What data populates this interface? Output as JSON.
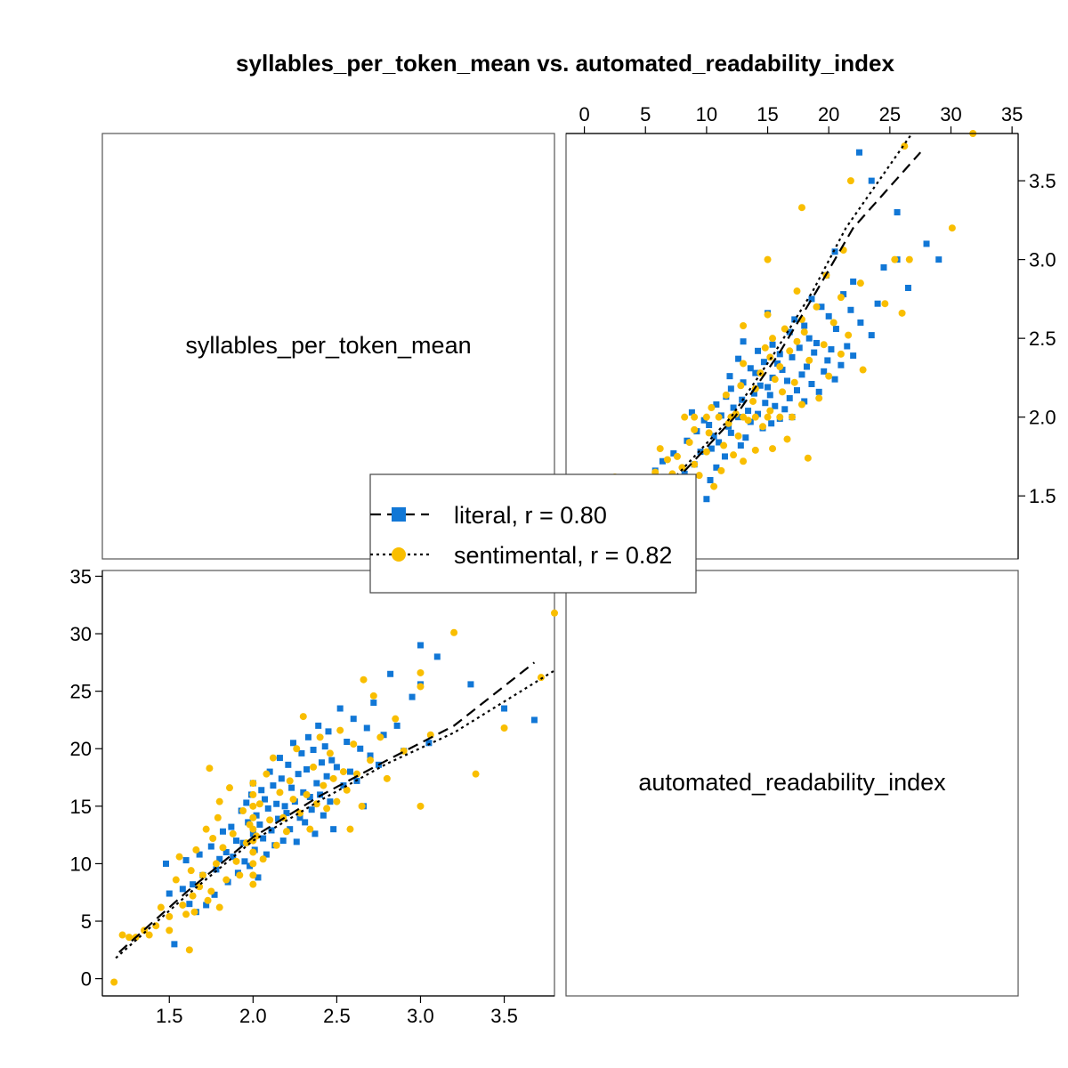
{
  "chart_data": {
    "type": "scatter",
    "layout": "scatterplot-matrix",
    "title": "syllables_per_token_mean vs. automated_readability_index",
    "variables": [
      "syllables_per_token_mean",
      "automated_readability_index"
    ],
    "axes": {
      "syllables_per_token_mean": {
        "range": [
          1.1,
          3.8
        ],
        "ticks": [
          "1.5",
          "2.0",
          "2.5",
          "3.0",
          "3.5"
        ]
      },
      "automated_readability_index": {
        "range": [
          -1.5,
          35.5
        ],
        "ticks": [
          "0",
          "5",
          "10",
          "15",
          "20",
          "25",
          "30",
          "35"
        ]
      }
    },
    "legend": {
      "placement": "center",
      "entries": [
        {
          "label": "literal, r = 0.80",
          "series": "literal"
        },
        {
          "label": "sentimental, r = 0.82",
          "series": "sentimental"
        }
      ]
    },
    "series": [
      {
        "name": "literal",
        "color": "#1177D6",
        "marker": "square",
        "line_style": "dashed",
        "trend": [
          [
            1.2,
            2.3
          ],
          [
            1.6,
            7.5
          ],
          [
            2.0,
            12.3
          ],
          [
            2.4,
            15.9
          ],
          [
            2.8,
            19.0
          ],
          [
            3.2,
            22.0
          ],
          [
            3.68,
            27.5
          ]
        ],
        "points": [
          [
            1.48,
            10.0
          ],
          [
            1.5,
            7.4
          ],
          [
            1.53,
            3.0
          ],
          [
            1.58,
            7.8
          ],
          [
            1.6,
            10.3
          ],
          [
            1.62,
            6.5
          ],
          [
            1.64,
            8.2
          ],
          [
            1.66,
            5.8
          ],
          [
            1.68,
            10.8
          ],
          [
            1.7,
            9.0
          ],
          [
            1.72,
            6.4
          ],
          [
            1.75,
            11.5
          ],
          [
            1.77,
            7.3
          ],
          [
            1.78,
            9.5
          ],
          [
            1.8,
            10.4
          ],
          [
            1.82,
            12.8
          ],
          [
            1.84,
            11.0
          ],
          [
            1.85,
            8.4
          ],
          [
            1.87,
            13.2
          ],
          [
            1.88,
            10.6
          ],
          [
            1.9,
            12.0
          ],
          [
            1.91,
            9.2
          ],
          [
            1.93,
            14.6
          ],
          [
            1.94,
            11.8
          ],
          [
            1.95,
            10.2
          ],
          [
            1.96,
            15.3
          ],
          [
            1.97,
            13.6
          ],
          [
            1.98,
            9.8
          ],
          [
            1.99,
            16.0
          ],
          [
            2.0,
            12.6
          ],
          [
            2.0,
            17.0
          ],
          [
            2.01,
            11.2
          ],
          [
            2.02,
            14.2
          ],
          [
            2.03,
            8.8
          ],
          [
            2.04,
            13.4
          ],
          [
            2.05,
            16.4
          ],
          [
            2.06,
            12.2
          ],
          [
            2.07,
            15.6
          ],
          [
            2.08,
            10.8
          ],
          [
            2.09,
            14.8
          ],
          [
            2.1,
            18.0
          ],
          [
            2.11,
            12.9
          ],
          [
            2.12,
            16.8
          ],
          [
            2.13,
            11.6
          ],
          [
            2.14,
            15.2
          ],
          [
            2.15,
            13.9
          ],
          [
            2.16,
            19.2
          ],
          [
            2.17,
            17.4
          ],
          [
            2.18,
            12.0
          ],
          [
            2.19,
            15.0
          ],
          [
            2.2,
            14.4
          ],
          [
            2.21,
            18.6
          ],
          [
            2.22,
            13.0
          ],
          [
            2.23,
            16.6
          ],
          [
            2.24,
            20.5
          ],
          [
            2.25,
            15.4
          ],
          [
            2.26,
            11.9
          ],
          [
            2.27,
            17.8
          ],
          [
            2.28,
            14.0
          ],
          [
            2.29,
            19.6
          ],
          [
            2.3,
            16.2
          ],
          [
            2.31,
            13.6
          ],
          [
            2.32,
            18.2
          ],
          [
            2.33,
            21.0
          ],
          [
            2.34,
            15.8
          ],
          [
            2.35,
            14.7
          ],
          [
            2.36,
            19.9
          ],
          [
            2.37,
            12.6
          ],
          [
            2.38,
            17.0
          ],
          [
            2.39,
            22.0
          ],
          [
            2.4,
            16.0
          ],
          [
            2.41,
            18.8
          ],
          [
            2.42,
            14.2
          ],
          [
            2.43,
            20.2
          ],
          [
            2.44,
            17.6
          ],
          [
            2.45,
            21.5
          ],
          [
            2.46,
            15.4
          ],
          [
            2.47,
            19.0
          ],
          [
            2.48,
            13.0
          ],
          [
            2.5,
            18.4
          ],
          [
            2.52,
            23.5
          ],
          [
            2.54,
            16.8
          ],
          [
            2.56,
            20.6
          ],
          [
            2.58,
            18.0
          ],
          [
            2.6,
            22.6
          ],
          [
            2.62,
            17.2
          ],
          [
            2.64,
            20.0
          ],
          [
            2.66,
            15.0
          ],
          [
            2.68,
            21.8
          ],
          [
            2.7,
            19.4
          ],
          [
            2.72,
            24.0
          ],
          [
            2.75,
            18.6
          ],
          [
            2.78,
            21.2
          ],
          [
            2.82,
            26.5
          ],
          [
            2.86,
            22.0
          ],
          [
            2.9,
            19.8
          ],
          [
            2.95,
            24.5
          ],
          [
            3.0,
            29.0
          ],
          [
            3.0,
            25.6
          ],
          [
            3.05,
            20.5
          ],
          [
            3.1,
            28.0
          ],
          [
            3.3,
            25.6
          ],
          [
            3.5,
            23.5
          ],
          [
            3.68,
            22.5
          ]
        ]
      },
      {
        "name": "sentimental",
        "color": "#F9BE00",
        "marker": "circle",
        "line_style": "dotted",
        "trend": [
          [
            1.18,
            1.8
          ],
          [
            1.6,
            7.2
          ],
          [
            2.0,
            12.0
          ],
          [
            2.4,
            15.5
          ],
          [
            2.8,
            18.7
          ],
          [
            3.2,
            21.4
          ],
          [
            3.8,
            26.8
          ]
        ],
        "points": [
          [
            1.17,
            -0.3
          ],
          [
            1.22,
            3.8
          ],
          [
            1.26,
            3.6
          ],
          [
            1.3,
            3.6
          ],
          [
            1.35,
            4.2
          ],
          [
            1.38,
            3.8
          ],
          [
            1.42,
            4.6
          ],
          [
            1.45,
            6.2
          ],
          [
            1.5,
            5.4
          ],
          [
            1.5,
            4.2
          ],
          [
            1.54,
            8.6
          ],
          [
            1.56,
            10.6
          ],
          [
            1.58,
            6.4
          ],
          [
            1.6,
            5.6
          ],
          [
            1.62,
            2.5
          ],
          [
            1.63,
            9.4
          ],
          [
            1.64,
            7.2
          ],
          [
            1.65,
            5.8
          ],
          [
            1.66,
            11.2
          ],
          [
            1.68,
            8.0
          ],
          [
            1.7,
            9.0
          ],
          [
            1.72,
            13.0
          ],
          [
            1.73,
            6.8
          ],
          [
            1.74,
            18.3
          ],
          [
            1.75,
            7.6
          ],
          [
            1.76,
            12.2
          ],
          [
            1.78,
            10.0
          ],
          [
            1.79,
            14.0
          ],
          [
            1.8,
            15.4
          ],
          [
            1.8,
            6.2
          ],
          [
            1.82,
            11.4
          ],
          [
            1.84,
            8.6
          ],
          [
            1.86,
            16.6
          ],
          [
            1.88,
            12.6
          ],
          [
            1.9,
            10.2
          ],
          [
            1.92,
            9.0
          ],
          [
            1.94,
            14.6
          ],
          [
            1.96,
            11.8
          ],
          [
            1.98,
            13.4
          ],
          [
            2.0,
            8.2
          ],
          [
            2.0,
            9.0
          ],
          [
            2.0,
            10.0
          ],
          [
            2.0,
            11.0
          ],
          [
            2.0,
            12.0
          ],
          [
            2.0,
            13.0
          ],
          [
            2.0,
            14.0
          ],
          [
            2.0,
            15.0
          ],
          [
            2.0,
            16.0
          ],
          [
            2.0,
            17.0
          ],
          [
            2.02,
            12.4
          ],
          [
            2.04,
            15.2
          ],
          [
            2.06,
            10.4
          ],
          [
            2.08,
            17.8
          ],
          [
            2.1,
            13.8
          ],
          [
            2.12,
            19.2
          ],
          [
            2.14,
            11.6
          ],
          [
            2.16,
            16.2
          ],
          [
            2.18,
            14.0
          ],
          [
            2.2,
            12.8
          ],
          [
            2.22,
            17.2
          ],
          [
            2.24,
            15.6
          ],
          [
            2.26,
            20.0
          ],
          [
            2.28,
            14.4
          ],
          [
            2.3,
            22.8
          ],
          [
            2.32,
            16.0
          ],
          [
            2.34,
            13.0
          ],
          [
            2.36,
            18.4
          ],
          [
            2.38,
            15.2
          ],
          [
            2.4,
            21.0
          ],
          [
            2.42,
            16.8
          ],
          [
            2.44,
            14.8
          ],
          [
            2.46,
            19.6
          ],
          [
            2.48,
            17.4
          ],
          [
            2.5,
            15.4
          ],
          [
            2.52,
            21.6
          ],
          [
            2.54,
            18.0
          ],
          [
            2.56,
            16.4
          ],
          [
            2.58,
            13.0
          ],
          [
            2.6,
            20.4
          ],
          [
            2.62,
            17.8
          ],
          [
            2.65,
            15.0
          ],
          [
            2.66,
            26.0
          ],
          [
            2.7,
            19.0
          ],
          [
            2.72,
            24.6
          ],
          [
            2.76,
            21.0
          ],
          [
            2.8,
            17.4
          ],
          [
            2.85,
            22.6
          ],
          [
            2.9,
            19.8
          ],
          [
            3.0,
            26.6
          ],
          [
            3.0,
            25.4
          ],
          [
            3.0,
            15.0
          ],
          [
            3.06,
            21.2
          ],
          [
            3.2,
            30.1
          ],
          [
            3.33,
            17.8
          ],
          [
            3.5,
            21.8
          ],
          [
            3.72,
            26.2
          ],
          [
            3.8,
            31.8
          ]
        ]
      }
    ]
  }
}
